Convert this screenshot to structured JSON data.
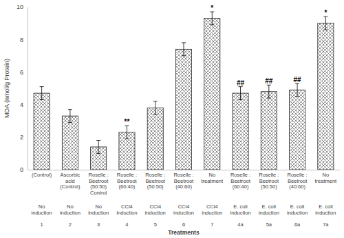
{
  "chart_data": {
    "type": "bar",
    "x_label": "Treatments",
    "y_label": "MDA (nmol/g Protein)",
    "categories": [
      "(Control)",
      "Ascorbic\nacid\n(Control)",
      "Roselle :\nBeetroot\n(50:50)\nControl",
      "Roselle :\nBeetroot\n(60:40)",
      "Roselle :\nBeetroot\n(50:50)",
      "Roselle :\nBeetroot\n(40:60)",
      "No\ntreatment",
      "Roselle :\nBeetroot\n(60:40)",
      "Roselle :\nBeetroot\n(50:50)",
      "Roselle :\nBeetroot\n(40:60)",
      "No\ntreatment"
    ],
    "induction": [
      "No\ninduction",
      "No\ninduction",
      "No\ninduction",
      "CCl4\ninduction",
      "CCl4\ninduction",
      "CCl4\ninduction",
      "CCl4\ninduction",
      "E. coli\ninduction",
      "E. coli\ninduction",
      "E. coli\ninduction",
      "E. coli\ninduction"
    ],
    "ids": [
      "1",
      "2",
      "3",
      "4",
      "5",
      "6",
      "7",
      "4a",
      "5a",
      "6a",
      "7a"
    ],
    "values": [
      4.7,
      3.3,
      1.4,
      2.3,
      3.8,
      7.4,
      9.3,
      4.7,
      4.8,
      4.9,
      9.0
    ],
    "errors": [
      0.4,
      0.4,
      0.4,
      0.4,
      0.4,
      0.4,
      0.4,
      0.4,
      0.4,
      0.4,
      0.4
    ],
    "annotations": [
      null,
      null,
      null,
      "**",
      null,
      null,
      "*",
      "##",
      "##",
      "##",
      "*"
    ],
    "color": "#7f7f7f",
    "ylim": [
      0,
      10
    ],
    "yticks": [
      0,
      2,
      4,
      6,
      8,
      10
    ]
  }
}
